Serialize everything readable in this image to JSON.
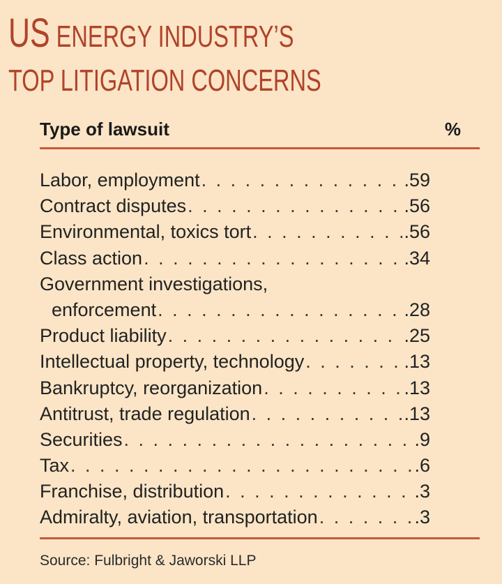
{
  "title": {
    "line1_big": "US",
    "line1_small": " ENERGY INDUSTRY’S",
    "line2": "TOP LITIGATION CONCERNS"
  },
  "table": {
    "col_type": "Type of lawsuit",
    "col_pct": "%",
    "rows": [
      {
        "label": "Labor, employment",
        "value": ".59"
      },
      {
        "label": "Contract disputes",
        "value": ".56"
      },
      {
        "label": "Environmental, toxics tort",
        "value": ".56"
      },
      {
        "label": "Class action",
        "value": ".34"
      },
      {
        "label": "Government investigations,",
        "label_cont": "enforcement",
        "value": ".28"
      },
      {
        "label": "Product liability",
        "value": ".25"
      },
      {
        "label": "Intellectual property, technology",
        "value": ".13"
      },
      {
        "label": "Bankruptcy, reorganization",
        "value": ".13"
      },
      {
        "label": "Antitrust, trade regulation",
        "value": ".13"
      },
      {
        "label": "Securities",
        "value": ".9"
      },
      {
        "label": "Tax",
        "value": ".6"
      },
      {
        "label": "Franchise, distribution",
        "value": ".3"
      },
      {
        "label": "Admiralty, aviation, transportation",
        "value": ".3"
      }
    ]
  },
  "source": "Source: Fulbright & Jaworski LLP",
  "colors": {
    "background": "#fbe5c6",
    "title": "#b0432b",
    "rule": "#c7573c"
  }
}
